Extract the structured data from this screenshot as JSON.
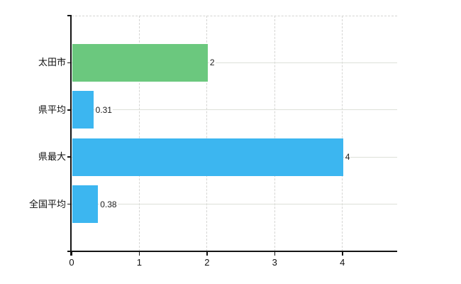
{
  "chart_data": {
    "type": "bar",
    "orientation": "horizontal",
    "title": "",
    "xlabel": "",
    "ylabel": "",
    "categories": [
      "太田市",
      "県平均",
      "県最大",
      "全国平均"
    ],
    "values": [
      2,
      0.31,
      4,
      0.38
    ],
    "value_labels": [
      "2",
      "0.31",
      "4",
      "0.38"
    ],
    "series": [
      {
        "name": "",
        "values": [
          2,
          0.31,
          4,
          0.38
        ]
      }
    ],
    "bar_colors": [
      "#6bc87e",
      "#3cb6f0",
      "#3cb6f0",
      "#3cb6f0"
    ],
    "x_ticks": [
      "0",
      "1",
      "2",
      "3",
      "4"
    ],
    "x_tick_values": [
      0,
      1,
      2,
      3,
      4
    ],
    "xlim": [
      0,
      4.81
    ],
    "grid": true,
    "legend": false,
    "background_color": "#ffffff",
    "axis_color": "#141414",
    "vertical_grid_color": "#d5d5d3",
    "horizontal_grid_color": "#dde0d9",
    "label_color": "#111111"
  }
}
